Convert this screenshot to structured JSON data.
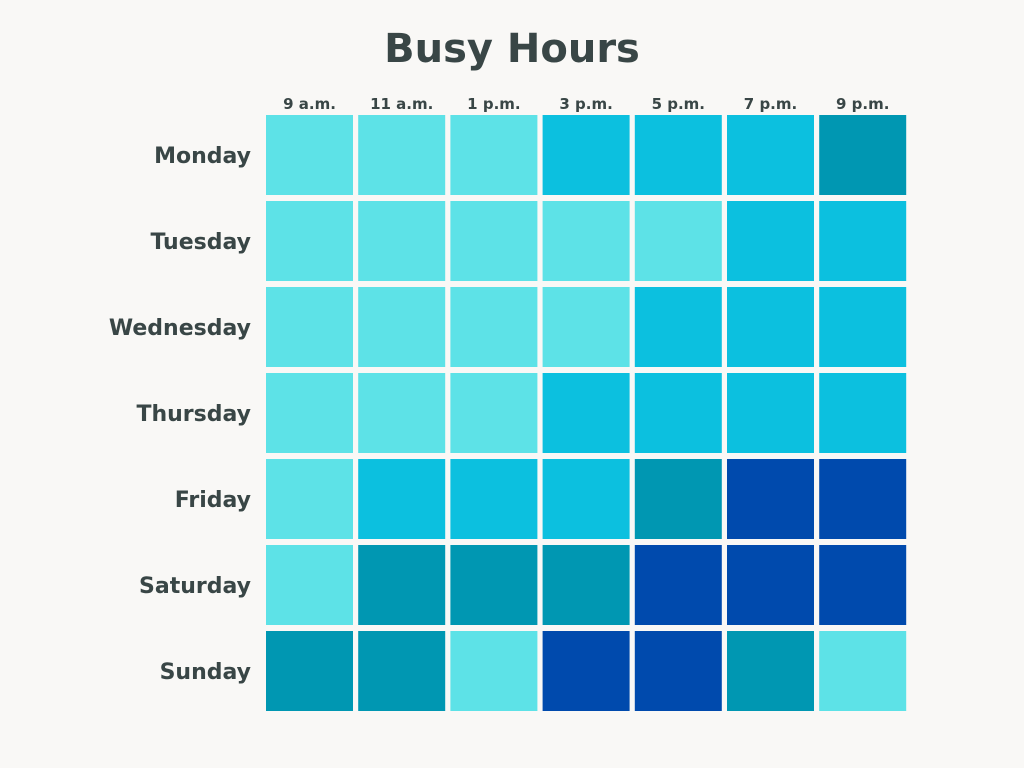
{
  "chart_data": {
    "type": "heatmap",
    "title": "Busy Hours",
    "columns": [
      "9 a.m.",
      "11 a.m.",
      "1 p.m.",
      "3 p.m.",
      "5 p.m.",
      "7 p.m.",
      "9 p.m."
    ],
    "rows": [
      "Monday",
      "Tuesday",
      "Wednesday",
      "Thursday",
      "Friday",
      "Saturday",
      "Sunday"
    ],
    "levels": [
      [
        1,
        1,
        1,
        2,
        2,
        2,
        3
      ],
      [
        1,
        1,
        1,
        1,
        1,
        2,
        2
      ],
      [
        1,
        1,
        1,
        1,
        2,
        2,
        2
      ],
      [
        1,
        1,
        1,
        2,
        2,
        2,
        2
      ],
      [
        1,
        2,
        2,
        2,
        3,
        4,
        4
      ],
      [
        1,
        3,
        3,
        3,
        4,
        4,
        4
      ],
      [
        3,
        3,
        1,
        4,
        4,
        3,
        1
      ]
    ],
    "level_colors": {
      "1": "#5de2e7",
      "2": "#0cc0df",
      "3": "#0097b2",
      "4": "#004aad"
    },
    "legend": "none",
    "grid": false
  },
  "colors": {
    "background": "#f9f8f6",
    "text": "#394646"
  }
}
